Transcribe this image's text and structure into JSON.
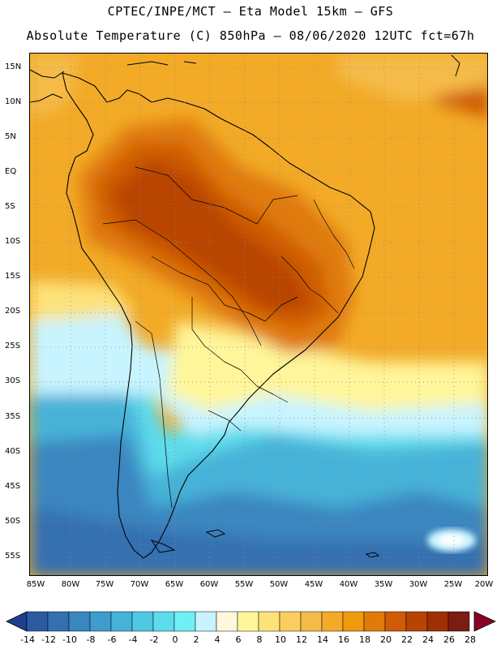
{
  "header": {
    "line1": "CPTEC/INPE/MCT –  Eta Model 15km – GFS",
    "line2": "Absolute Temperature (C) 850hPa – 08/06/2020 12UTC fct=67h"
  },
  "map": {
    "lat_ticks": [
      "15N",
      "10N",
      "5N",
      "EQ",
      "5S",
      "10S",
      "15S",
      "20S",
      "25S",
      "30S",
      "35S",
      "40S",
      "45S",
      "50S",
      "55S"
    ],
    "lon_ticks": [
      "85W",
      "80W",
      "75W",
      "70W",
      "65W",
      "60W",
      "55W",
      "50W",
      "45W",
      "40W",
      "35W",
      "30W",
      "25W",
      "20W"
    ]
  },
  "colorbar": {
    "labels": [
      "-14",
      "-12",
      "-10",
      "-8",
      "-6",
      "-4",
      "-2",
      "0",
      "2",
      "4",
      "6",
      "8",
      "10",
      "12",
      "14",
      "16",
      "18",
      "20",
      "22",
      "24",
      "26",
      "28"
    ],
    "colors": [
      "#1f3f8f",
      "#2b5aa0",
      "#3470b0",
      "#3a86c0",
      "#3f9ccc",
      "#46b2d8",
      "#4fc8e2",
      "#5ddcec",
      "#6ef0f6",
      "#c8f4ff",
      "#fff8dc",
      "#fff59a",
      "#fde27a",
      "#f9ce5f",
      "#f5bb48",
      "#f2aa27",
      "#ee9a0a",
      "#e07a08",
      "#cf5b06",
      "#b84404",
      "#9e3003",
      "#7c1c12",
      "#8a0027"
    ]
  }
}
